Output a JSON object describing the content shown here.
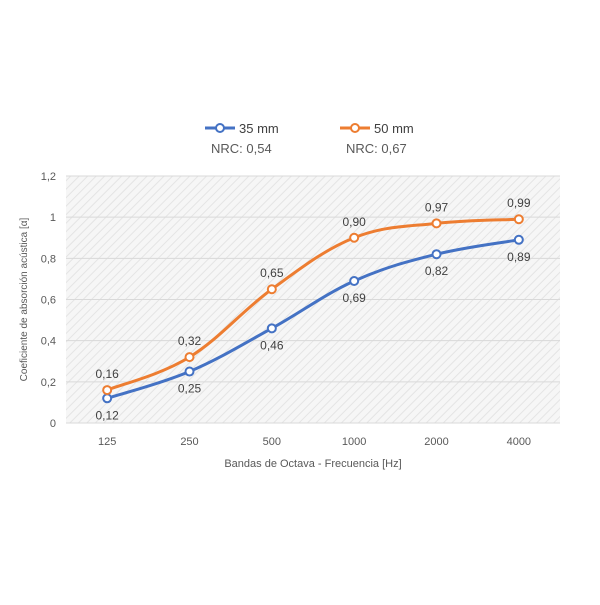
{
  "chart_data": {
    "type": "line",
    "categories": [
      "125",
      "250",
      "500",
      "1000",
      "2000",
      "4000"
    ],
    "series": [
      {
        "name": "35 mm",
        "subtitle": "NRC: 0,54",
        "color": "#4472c4",
        "values": [
          0.12,
          0.25,
          0.46,
          0.69,
          0.82,
          0.89
        ],
        "labels": [
          "0,12",
          "0,25",
          "0,46",
          "0,69",
          "0,82",
          "0,89"
        ],
        "label_position": "below"
      },
      {
        "name": "50 mm",
        "subtitle": "NRC: 0,67",
        "color": "#ed7d31",
        "values": [
          0.16,
          0.32,
          0.65,
          0.9,
          0.97,
          0.99
        ],
        "labels": [
          "0,16",
          "0,32",
          "0,65",
          "0,90",
          "0,97",
          "0,99"
        ],
        "label_position": "above"
      }
    ],
    "xlabel": "Bandas de Octava - Frecuencia [Hz]",
    "ylabel": "Coeficiente de absorción acústica [α]",
    "ylim": [
      0,
      1.2
    ],
    "yticks": [
      0,
      0.2,
      0.4,
      0.6,
      0.8,
      1,
      1.2
    ],
    "ytick_labels": [
      "0",
      "0,2",
      "0,4",
      "0,6",
      "0,8",
      "1",
      "1,2"
    ],
    "legend_position": "top",
    "grid": true,
    "plot_background": "hatched light gray"
  }
}
